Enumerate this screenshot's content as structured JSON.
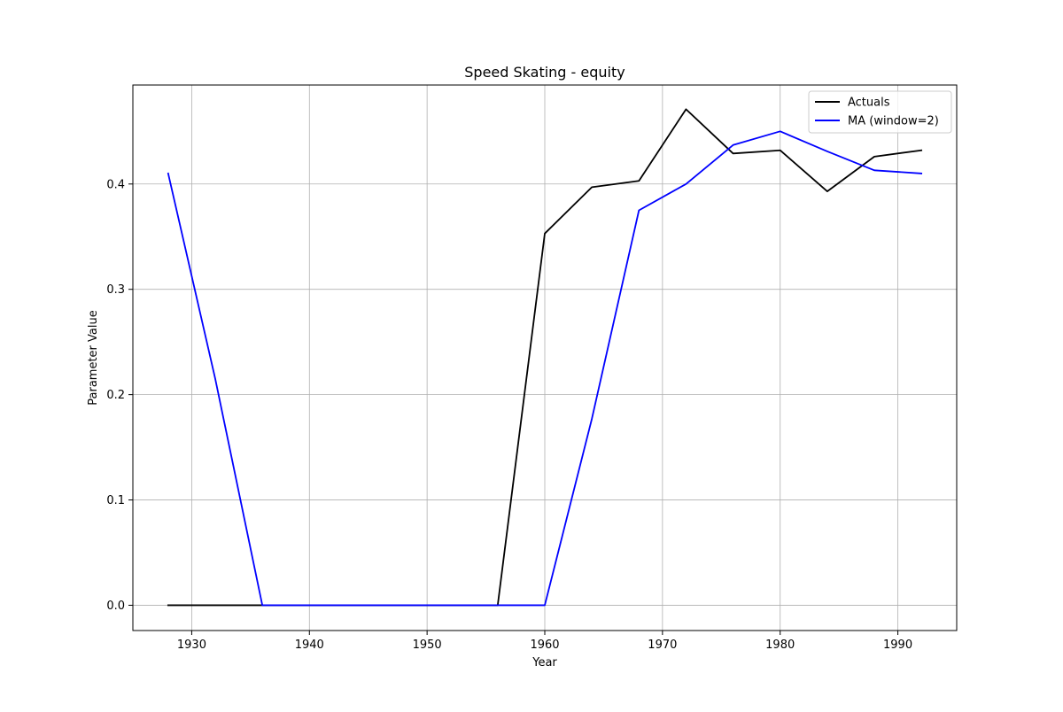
{
  "chart_data": {
    "type": "line",
    "title": "Speed Skating - equity",
    "xlabel": "Year",
    "ylabel": "Parameter Value",
    "xlim": [
      1925,
      1995
    ],
    "ylim": [
      -0.024,
      0.494
    ],
    "x_ticks": [
      1930,
      1940,
      1950,
      1960,
      1970,
      1980,
      1990
    ],
    "x_tick_labels": [
      "1930",
      "1940",
      "1950",
      "1960",
      "1970",
      "1980",
      "1990"
    ],
    "y_ticks": [
      0.0,
      0.1,
      0.2,
      0.3,
      0.4
    ],
    "y_tick_labels": [
      "0.0",
      "0.1",
      "0.2",
      "0.3",
      "0.4"
    ],
    "grid": true,
    "legend_position": "top-right",
    "series": [
      {
        "name": "Actuals",
        "color": "#000000",
        "x": [
          1928,
          1932,
          1936,
          1948,
          1952,
          1956,
          1960,
          1964,
          1968,
          1972,
          1976,
          1980,
          1984,
          1988,
          1992
        ],
        "y": [
          0.0,
          0.0,
          0.0,
          0.0,
          0.0,
          0.0,
          0.353,
          0.397,
          0.403,
          0.471,
          0.429,
          0.432,
          0.393,
          0.426,
          0.432
        ]
      },
      {
        "name": "MA (window=2)",
        "color": "#0000ff",
        "x": [
          1928,
          1932,
          1936,
          1948,
          1952,
          1956,
          1960,
          1964,
          1968,
          1972,
          1976,
          1980,
          1984,
          1988,
          1992
        ],
        "y": [
          0.41,
          0.215,
          0.0,
          0.0,
          0.0,
          0.0,
          0.0,
          0.177,
          0.375,
          0.4,
          0.437,
          0.45,
          0.431,
          0.413,
          0.41
        ]
      }
    ]
  }
}
